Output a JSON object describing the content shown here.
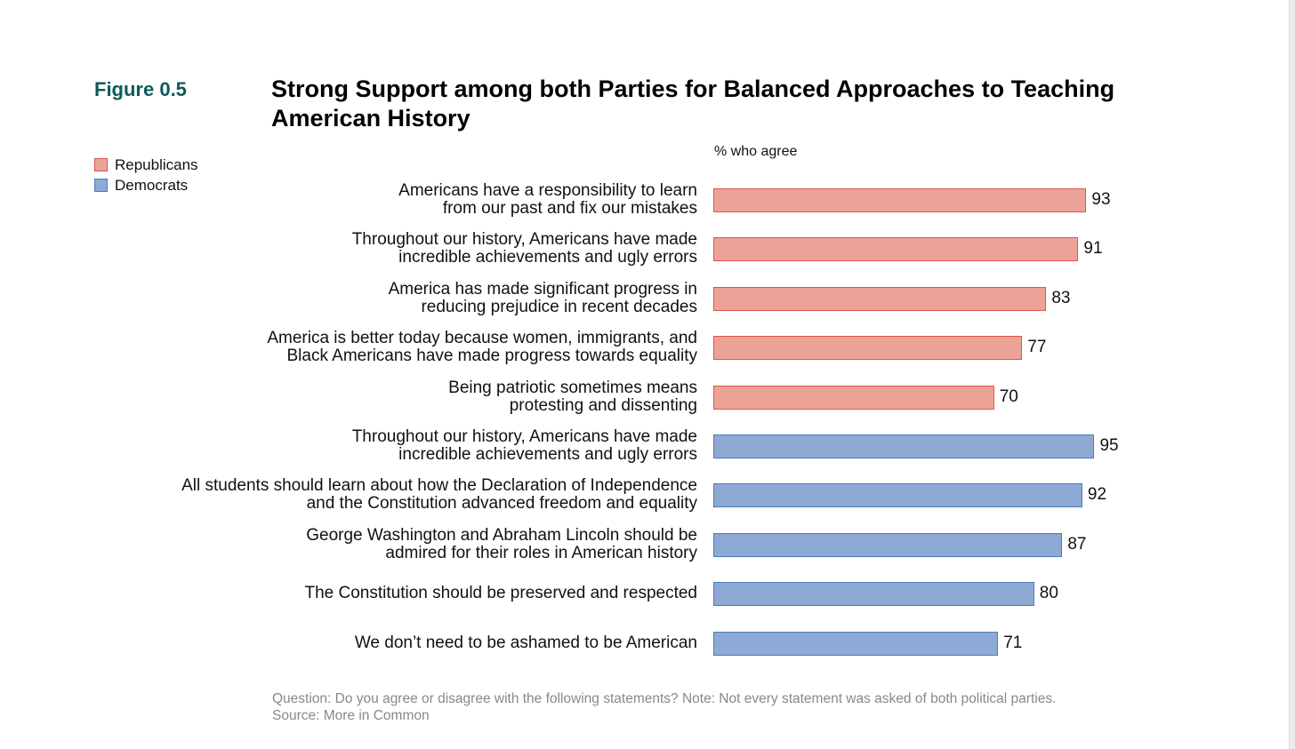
{
  "figure_label": "Figure 0.5",
  "colors": {
    "Republicans": "#eba397",
    "Republicans_border": "#e0554a",
    "Democrats": "#8eaad4",
    "Democrats_border": "#4a7bb8",
    "figure": "#0c5a5a"
  },
  "chart_data": {
    "type": "bar",
    "orientation": "horizontal",
    "title": "Strong Support among both Parties for Balanced Approaches to Teaching American History",
    "xlabel": "% who agree",
    "xlim": [
      0,
      100
    ],
    "legend": [
      "Republicans",
      "Democrats"
    ],
    "legend_placement": "top-left",
    "categories": [
      {
        "label": "Americans have a responsibility to learn from our past and fix our mistakes",
        "lines": [
          "Americans have a responsibility to learn",
          "from our past and fix our mistakes"
        ],
        "series": "Republicans",
        "value": 93
      },
      {
        "label": "Throughout our history, Americans have made incredible achievements and ugly errors",
        "lines": [
          "Throughout our history, Americans have made",
          "incredible achievements and ugly errors"
        ],
        "series": "Republicans",
        "value": 91
      },
      {
        "label": "America has made significant progress in reducing prejudice in recent decades",
        "lines": [
          "America has made significant progress in",
          "reducing prejudice in recent decades"
        ],
        "series": "Republicans",
        "value": 83
      },
      {
        "label": "America is better today because women, immigrants, and Black Americans have made progress towards equality",
        "lines": [
          "America is better today because women, immigrants, and",
          "Black Americans have made progress towards equality"
        ],
        "series": "Republicans",
        "value": 77
      },
      {
        "label": "Being patriotic sometimes means protesting and dissenting",
        "lines": [
          "Being patriotic sometimes means",
          "protesting and dissenting"
        ],
        "series": "Republicans",
        "value": 70
      },
      {
        "label": "Throughout our history, Americans have made incredible achievements and ugly errors",
        "lines": [
          "Throughout our history, Americans have made",
          "incredible achievements and ugly errors"
        ],
        "series": "Democrats",
        "value": 95
      },
      {
        "label": "All students should learn about how the Declaration of Independence and the Constitution advanced freedom and equality",
        "lines": [
          "All students should learn about how the Declaration of Independence",
          "and the Constitution advanced freedom and equality"
        ],
        "series": "Democrats",
        "value": 92
      },
      {
        "label": "George Washington and Abraham Lincoln should be admired for their roles in American history",
        "lines": [
          "George Washington and Abraham Lincoln should be",
          "admired for their roles in American history"
        ],
        "series": "Democrats",
        "value": 87
      },
      {
        "label": "The Constitution should be preserved and respected",
        "lines": [
          "The Constitution should be preserved and respected"
        ],
        "series": "Democrats",
        "value": 80
      },
      {
        "label": "We don’t need to be ashamed to be American",
        "lines": [
          "We don’t need to be ashamed to be American"
        ],
        "series": "Democrats",
        "value": 71
      }
    ]
  },
  "footnote": {
    "question": "Question: Do you agree or disagree with the following statements? Note: Not every statement was asked of both political parties.",
    "source": "Source: More in Common"
  }
}
